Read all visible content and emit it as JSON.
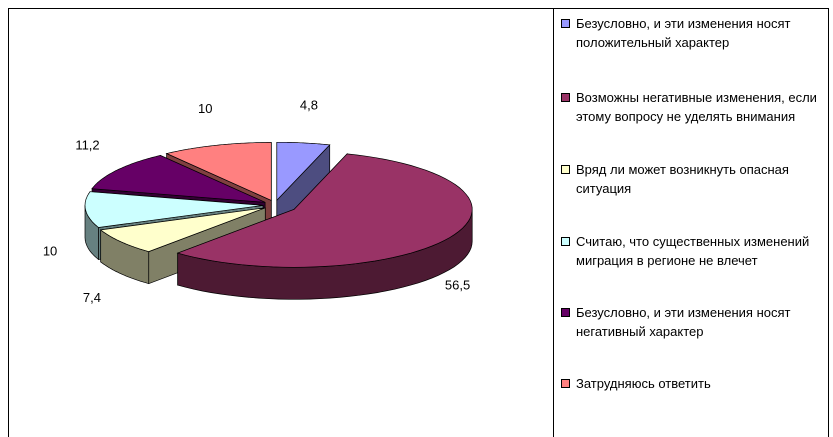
{
  "chart_data": {
    "type": "pie3d",
    "categories": [
      "Безусловно, и эти изменения носят положительный характер",
      "Возможны негативные изменения, если этому вопросу  не уделять внимания",
      "Вряд ли может возникнуть опасная ситуация",
      "Считаю, что существенных изменений миграция в регионе не влечет",
      "Безусловно,  и эти изменения носят негативный характер",
      "Затрудняюсь ответить"
    ],
    "values": [
      4.8,
      56.5,
      7.4,
      10,
      11.2,
      10
    ],
    "value_labels": [
      "4,8",
      "56,5",
      "7,4",
      "10",
      "11,2",
      "10"
    ],
    "colors": [
      "#9999ff",
      "#993366",
      "#ffffcc",
      "#ccffff",
      "#660066",
      "#ff8080"
    ],
    "legend": "right"
  }
}
